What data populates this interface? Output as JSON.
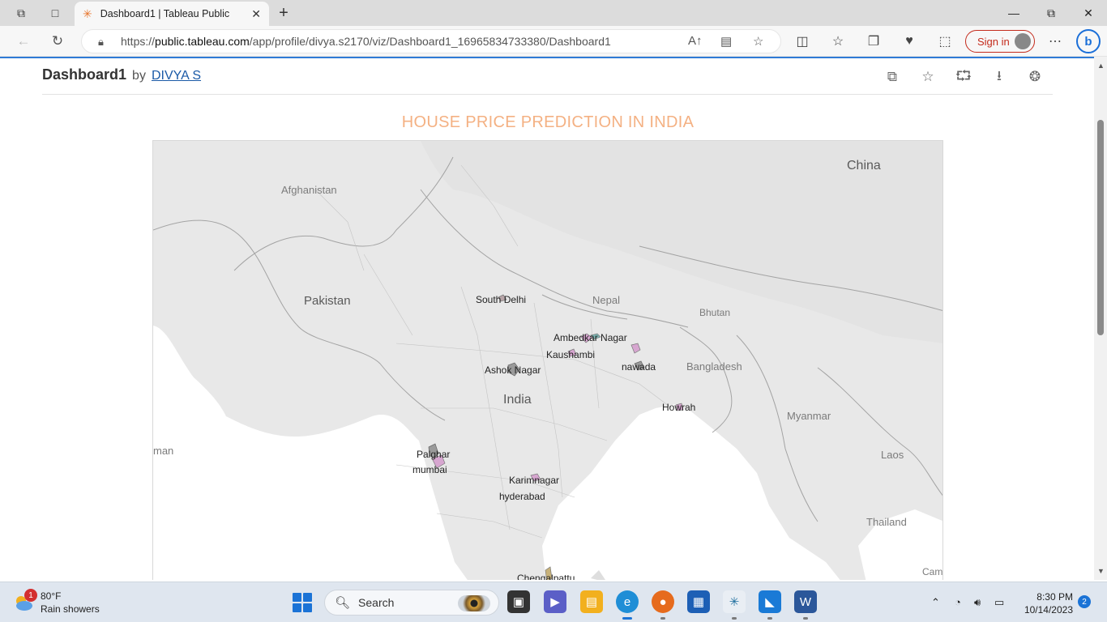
{
  "browser": {
    "tab_title": "Dashboard1 | Tableau Public",
    "url_prefix": "https://",
    "url_host": "public.tableau.com",
    "url_path": "/app/profile/divya.s2170/viz/Dashboard1_16965834733380/Dashboard1",
    "signin_label": "Sign in"
  },
  "viz": {
    "title": "Dashboard1",
    "by": "by",
    "author": "DIVYA S"
  },
  "dashboard": {
    "title": "HOUSE PRICE PREDICTION IN INDIA"
  },
  "map": {
    "countries": {
      "china": "China",
      "afghanistan": "Afghanistan",
      "pakistan": "Pakistan",
      "nepal": "Nepal",
      "bhutan": "Bhutan",
      "bangladesh": "Bangladesh",
      "india": "India",
      "myanmar": "Myanmar",
      "laos": "Laos",
      "thailand": "Thailand",
      "oman_partial": "man",
      "cambodia_partial": "Cam"
    },
    "districts": [
      "South Delhi",
      "Ambedkar Nagar",
      "Kaushambi",
      "Ashok Nagar",
      "nawada",
      "Howrah",
      "Palghar",
      "mumbai",
      "Karimnagar",
      "hyderabad",
      "Chengalpattu"
    ],
    "colors": {
      "land": "#e8e8e8",
      "sea": "#ffffff",
      "region_pink": "#d7a6d0",
      "region_gray": "#9a9a9a",
      "region_teal": "#7fb8b5",
      "region_tan": "#c8b27a"
    }
  },
  "taskbar": {
    "weather_temp": "80°F",
    "weather_desc": "Rain showers",
    "weather_badge": "1",
    "search_label": "Search",
    "time": "8:30 PM",
    "date": "10/14/2023",
    "notif_count": "2"
  }
}
